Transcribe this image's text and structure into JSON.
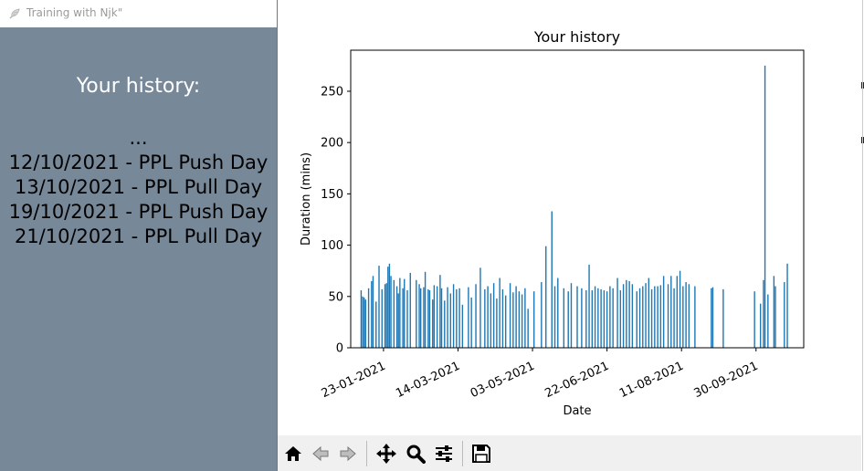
{
  "window": {
    "title": "Training with Njk\""
  },
  "sidebar": {
    "heading": "Your history:",
    "entries": [
      "...",
      "12/10/2021 - PPL Push Day",
      "13/10/2021 - PPL Pull Day",
      "19/10/2021 - PPL Push Day",
      "21/10/2021 - PPL Pull Day"
    ],
    "background_color": "#778899"
  },
  "chart_data": {
    "type": "bar",
    "title": "Your history",
    "xlabel": "Date",
    "ylabel": "Duration (mins)",
    "ylim": [
      0,
      290
    ],
    "yticks": [
      "0",
      "50",
      "100",
      "150",
      "200",
      "250"
    ],
    "xticks": [
      "23-01-2021",
      "14-03-2021",
      "03-05-2021",
      "22-06-2021",
      "11-08-2021",
      "30-09-2021"
    ],
    "xlim": [
      "2021-01-01",
      "2021-11-01"
    ],
    "bar_color": "#1f77b4",
    "grid": false,
    "series": [
      {
        "dates": [
          "2021-01-08",
          "2021-01-09",
          "2021-01-10",
          "2021-01-11",
          "2021-01-13",
          "2021-01-15",
          "2021-01-16",
          "2021-01-18",
          "2021-01-20",
          "2021-01-22",
          "2021-01-24",
          "2021-01-25",
          "2021-01-26",
          "2021-01-27",
          "2021-01-28",
          "2021-01-30",
          "2021-02-01",
          "2021-02-02",
          "2021-02-03",
          "2021-02-05",
          "2021-02-06",
          "2021-02-08",
          "2021-02-10",
          "2021-02-14",
          "2021-02-16",
          "2021-02-17",
          "2021-02-19",
          "2021-02-20",
          "2021-02-22",
          "2021-02-23",
          "2021-02-25",
          "2021-02-26",
          "2021-02-28",
          "2021-03-02",
          "2021-03-03",
          "2021-03-05",
          "2021-03-07",
          "2021-03-09",
          "2021-03-11",
          "2021-03-13",
          "2021-03-15",
          "2021-03-17",
          "2021-03-21",
          "2021-03-23",
          "2021-03-26",
          "2021-03-29",
          "2021-04-01",
          "2021-04-03",
          "2021-04-05",
          "2021-04-07",
          "2021-04-09",
          "2021-04-11",
          "2021-04-13",
          "2021-04-15",
          "2021-04-18",
          "2021-04-20",
          "2021-04-22",
          "2021-04-24",
          "2021-04-26",
          "2021-04-28",
          "2021-04-30",
          "2021-05-04",
          "2021-05-09",
          "2021-05-12",
          "2021-05-16",
          "2021-05-18",
          "2021-05-20",
          "2021-05-24",
          "2021-05-27",
          "2021-05-29",
          "2021-06-02",
          "2021-06-05",
          "2021-06-08",
          "2021-06-10",
          "2021-06-12",
          "2021-06-14",
          "2021-06-16",
          "2021-06-18",
          "2021-06-20",
          "2021-06-22",
          "2021-06-24",
          "2021-06-26",
          "2021-06-29",
          "2021-07-01",
          "2021-07-03",
          "2021-07-05",
          "2021-07-07",
          "2021-07-09",
          "2021-07-12",
          "2021-07-14",
          "2021-07-16",
          "2021-07-18",
          "2021-07-20",
          "2021-07-22",
          "2021-07-24",
          "2021-07-26",
          "2021-07-28",
          "2021-07-30",
          "2021-08-02",
          "2021-08-04",
          "2021-08-06",
          "2021-08-08",
          "2021-08-10",
          "2021-08-12",
          "2021-08-14",
          "2021-08-16",
          "2021-08-20",
          "2021-08-31",
          "2021-09-01",
          "2021-09-08",
          "2021-09-29",
          "2021-10-03",
          "2021-10-05",
          "2021-10-06",
          "2021-10-08",
          "2021-10-12",
          "2021-10-13",
          "2021-10-19",
          "2021-10-21"
        ],
        "values": [
          56,
          50,
          49,
          47,
          58,
          65,
          70,
          45,
          80,
          57,
          62,
          63,
          79,
          82,
          70,
          66,
          60,
          53,
          68,
          58,
          67,
          56,
          73,
          66,
          62,
          58,
          59,
          74,
          57,
          56,
          47,
          61,
          60,
          71,
          58,
          46,
          59,
          53,
          62,
          57,
          58,
          42,
          59,
          49,
          62,
          78,
          57,
          60,
          53,
          63,
          48,
          68,
          57,
          51,
          63,
          54,
          60,
          55,
          52,
          58,
          38,
          55,
          64,
          99,
          133,
          60,
          68,
          58,
          55,
          63,
          60,
          58,
          56,
          81,
          56,
          60,
          58,
          57,
          56,
          55,
          60,
          58,
          68,
          56,
          62,
          66,
          65,
          62,
          55,
          58,
          60,
          63,
          68,
          57,
          60,
          60,
          61,
          70,
          62,
          70,
          58,
          70,
          75,
          60,
          64,
          62,
          60,
          58,
          59,
          57,
          55,
          43,
          66,
          275,
          52,
          70,
          60,
          64,
          82
        ]
      }
    ]
  },
  "toolbar": {
    "buttons": [
      "home-icon",
      "back-icon",
      "forward-icon",
      "pan-icon",
      "zoom-icon",
      "configure-icon",
      "save-icon"
    ]
  }
}
